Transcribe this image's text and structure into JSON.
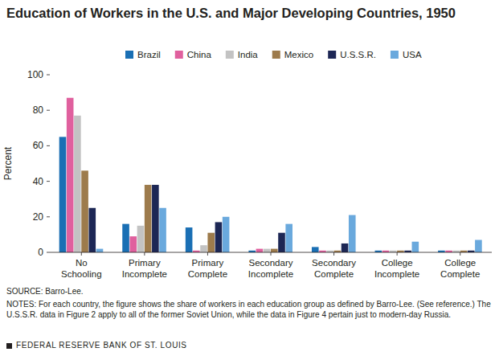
{
  "chart_data": {
    "type": "bar",
    "title": "Education of Workers in the U.S. and Major Developing Countries, 1950",
    "y_label": "Percent",
    "categories": [
      "No Schooling",
      "Primary Incomplete",
      "Primary Complete",
      "Secondary Incomplete",
      "Secondary Complete",
      "College Incomplete",
      "College Complete"
    ],
    "series": [
      {
        "name": "Brazil",
        "color": "#1a6fb4",
        "values": [
          65,
          16,
          14,
          1,
          3,
          1,
          1
        ]
      },
      {
        "name": "China",
        "color": "#e0609e",
        "values": [
          87,
          9,
          1,
          2,
          1,
          1,
          1
        ]
      },
      {
        "name": "India",
        "color": "#c3c3c3",
        "values": [
          77,
          15,
          4,
          2,
          1,
          1,
          1
        ]
      },
      {
        "name": "Mexico",
        "color": "#9d7b4c",
        "values": [
          46,
          38,
          11,
          2,
          1,
          1,
          1
        ]
      },
      {
        "name": "U.S.S.R.",
        "color": "#1d2755",
        "values": [
          25,
          38,
          17,
          11,
          5,
          1,
          1
        ]
      },
      {
        "name": "USA",
        "color": "#6aa9dd",
        "values": [
          2,
          25,
          20,
          16,
          21,
          6,
          7
        ]
      }
    ],
    "ylim": [
      0,
      100
    ],
    "yticks": [
      0,
      20,
      40,
      60,
      80,
      100
    ],
    "grid": false,
    "legend": "top",
    "source": "SOURCE: Barro-Lee.",
    "notes": "NOTES: For each country, the figure shows the share of workers in each education group as defined by Barro-Lee. (See reference.) The U.S.S.R. data in Figure 2 apply to all of the former Soviet Union, while the data in Figure 4 pertain just to modern-day Russia.",
    "footer": "FEDERAL RESERVE BANK OF ST. LOUIS"
  }
}
